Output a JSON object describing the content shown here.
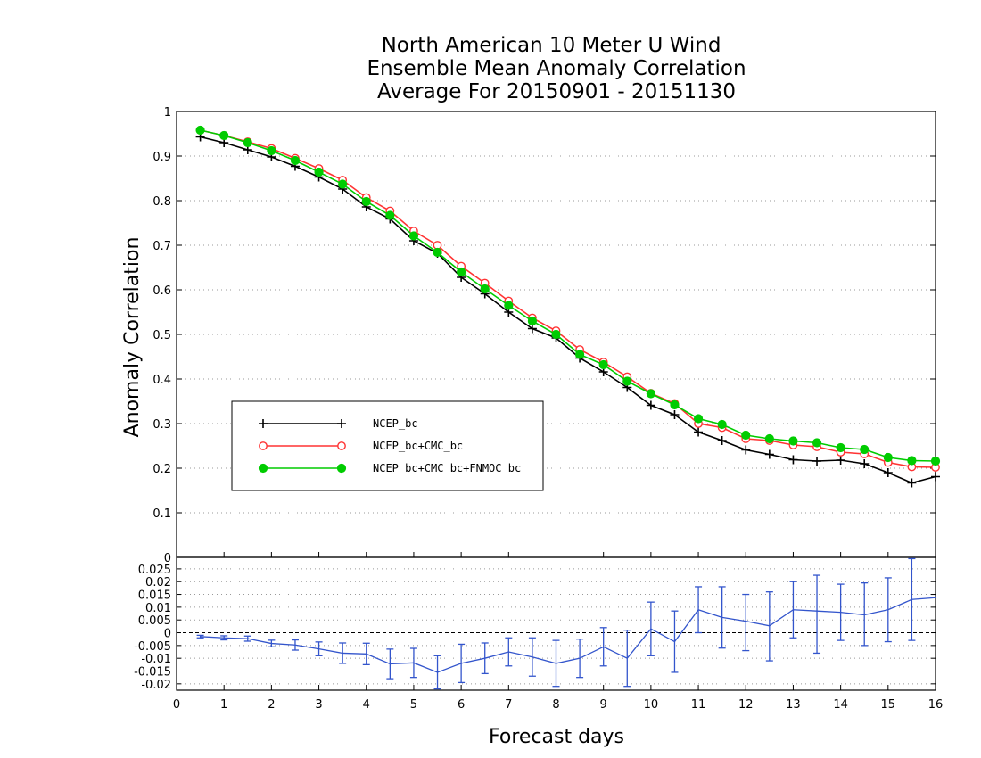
{
  "chart_data": {
    "title_lines": [
      "North American 10 Meter U Wind",
      "Ensemble Mean Anomaly Correlation",
      "Average For 20150901 - 20151130"
    ],
    "type": "line",
    "xlabel": "Forecast days",
    "ylabel": "Anomaly Correlation",
    "xlim": [
      0,
      16
    ],
    "x_ticks": [
      "0",
      "1",
      "2",
      "3",
      "4",
      "5",
      "6",
      "7",
      "8",
      "9",
      "10",
      "11",
      "12",
      "13",
      "14",
      "15",
      "16"
    ],
    "top_panel": {
      "ylim": [
        0,
        1
      ],
      "y_ticks": [
        "0",
        "0.1",
        "0.2",
        "0.3",
        "0.4",
        "0.5",
        "0.6",
        "0.7",
        "0.8",
        "0.9",
        "1"
      ],
      "grid": "horizontal dotted",
      "legend_position": "lower-left",
      "x": [
        0.5,
        1,
        1.5,
        2,
        2.5,
        3,
        3.5,
        4,
        4.5,
        5,
        5.5,
        6,
        6.5,
        7,
        7.5,
        8,
        8.5,
        9,
        9.5,
        10,
        10.5,
        11,
        11.5,
        12,
        12.5,
        13,
        13.5,
        14,
        14.5,
        15,
        15.5,
        16
      ],
      "series": [
        {
          "name": "NCEP_bc",
          "color": "#000000",
          "marker": "plus",
          "values": [
            0.943,
            0.93,
            0.914,
            0.898,
            0.877,
            0.853,
            0.826,
            0.786,
            0.759,
            0.71,
            0.682,
            0.628,
            0.591,
            0.55,
            0.513,
            0.492,
            0.447,
            0.416,
            0.381,
            0.341,
            0.32,
            0.281,
            0.262,
            0.241,
            0.231,
            0.219,
            0.216,
            0.218,
            0.21,
            0.19,
            0.167,
            0.181
          ]
        },
        {
          "name": "NCEP_bc+CMC_bc",
          "color": "#ff3333",
          "marker": "open-circle",
          "values": [
            0.958,
            0.946,
            0.932,
            0.917,
            0.895,
            0.872,
            0.846,
            0.807,
            0.777,
            0.732,
            0.7,
            0.653,
            0.615,
            0.575,
            0.537,
            0.508,
            0.466,
            0.438,
            0.405,
            0.368,
            0.345,
            0.3,
            0.291,
            0.266,
            0.262,
            0.252,
            0.248,
            0.236,
            0.232,
            0.213,
            0.203,
            0.202
          ]
        },
        {
          "name": "NCEP_bc+CMC_bc+FNMOC_bc",
          "color": "#00cc00",
          "marker": "filled-circle",
          "values": [
            0.958,
            0.946,
            0.93,
            0.912,
            0.89,
            0.864,
            0.837,
            0.798,
            0.767,
            0.721,
            0.684,
            0.64,
            0.602,
            0.565,
            0.53,
            0.5,
            0.455,
            0.432,
            0.395,
            0.367,
            0.342,
            0.311,
            0.298,
            0.274,
            0.266,
            0.261,
            0.257,
            0.246,
            0.242,
            0.224,
            0.217,
            0.216
          ]
        }
      ]
    },
    "bottom_panel": {
      "ylim": [
        -0.0225,
        0.0295
      ],
      "y_ticks": [
        "-0.02",
        "-0.015",
        "-0.01",
        "-0.005",
        "0",
        "0.005",
        "0.01",
        "0.015",
        "0.02",
        "0.025"
      ],
      "top_tick_label": "0",
      "grid": "horizontal dotted",
      "zero_line": "dashed",
      "color": "#3355cc",
      "x": [
        0.5,
        1,
        1.5,
        2,
        2.5,
        3,
        3.5,
        4,
        4.5,
        5,
        5.5,
        6,
        6.5,
        7,
        7.5,
        8,
        8.5,
        9,
        9.5,
        10,
        10.5,
        11,
        11.5,
        12,
        12.5,
        13,
        13.5,
        14,
        14.5,
        15,
        15.5,
        16
      ],
      "values": [
        -0.0015,
        -0.002,
        -0.0023,
        -0.0042,
        -0.0048,
        -0.0063,
        -0.008,
        -0.0083,
        -0.0122,
        -0.0118,
        -0.0155,
        -0.012,
        -0.01,
        -0.0075,
        -0.0095,
        -0.012,
        -0.01,
        -0.0055,
        -0.01,
        0.0015,
        -0.0035,
        0.009,
        0.006,
        0.0045,
        0.0027,
        0.009,
        0.0085,
        0.008,
        0.007,
        0.009,
        0.013,
        0.0137
      ],
      "err_low": [
        -0.002,
        -0.0028,
        -0.0033,
        -0.0055,
        -0.0068,
        -0.009,
        -0.012,
        -0.0125,
        -0.018,
        -0.0175,
        -0.022,
        -0.0195,
        -0.016,
        -0.013,
        -0.017,
        -0.021,
        -0.0175,
        -0.013,
        -0.021,
        -0.009,
        -0.0155,
        0.0,
        -0.006,
        -0.007,
        -0.011,
        -0.002,
        -0.008,
        -0.003,
        -0.005,
        -0.0035,
        -0.003,
        null
      ],
      "err_high": [
        -0.001,
        -0.0012,
        -0.0013,
        -0.0029,
        -0.0028,
        -0.0036,
        -0.004,
        -0.0041,
        -0.0064,
        -0.0061,
        -0.009,
        -0.0045,
        -0.004,
        -0.002,
        -0.002,
        -0.003,
        -0.0025,
        0.002,
        0.001,
        0.012,
        0.0085,
        0.018,
        0.018,
        0.015,
        0.016,
        0.02,
        0.0225,
        0.019,
        0.0195,
        0.0215,
        0.029,
        null
      ]
    }
  }
}
